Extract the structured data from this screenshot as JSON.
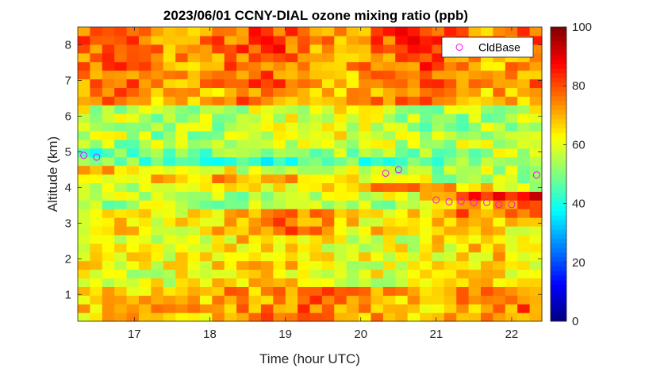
{
  "chart_data": {
    "type": "heatmap",
    "title": "2023/06/01 CCNY-DIAL ozone mixing ratio (ppb)",
    "xlabel": "Time (hour UTC)",
    "ylabel": "Altitude (km)",
    "xlim": [
      16.25,
      22.4
    ],
    "ylim": [
      0.25,
      8.5
    ],
    "x_ticks": [
      17,
      18,
      19,
      20,
      21,
      22
    ],
    "y_ticks": [
      1,
      2,
      3,
      4,
      5,
      6,
      7,
      8
    ],
    "colorbar": {
      "min": 0,
      "max": 100,
      "ticks": [
        0,
        20,
        40,
        60,
        80,
        100
      ],
      "colormap": "jet"
    },
    "legend": {
      "label": "CldBase",
      "marker": "circle",
      "color": "#ff00ff",
      "location": "top-right"
    },
    "cloud_base": {
      "name": "CldBase",
      "x": [
        16.33,
        16.5,
        20.33,
        20.5,
        21.0,
        21.17,
        21.33,
        21.5,
        21.67,
        21.83,
        22.0,
        22.33
      ],
      "y": [
        4.9,
        4.85,
        4.4,
        4.5,
        3.65,
        3.6,
        3.62,
        3.58,
        3.58,
        3.52,
        3.52,
        4.35
      ]
    },
    "field_description": {
      "layers_altitude_km": [
        {
          "range": [
            0.25,
            1.3
          ],
          "typical_ppb": 72
        },
        {
          "range": [
            1.3,
            2.6
          ],
          "typical_ppb": 64
        },
        {
          "range": [
            2.6,
            3.4
          ],
          "typical_ppb": 70
        },
        {
          "range": [
            3.4,
            4.5
          ],
          "typical_ppb": 55
        },
        {
          "range": [
            4.5,
            5.3
          ],
          "typical_ppb": 45
        },
        {
          "range": [
            5.3,
            6.3
          ],
          "typical_ppb": 58
        },
        {
          "range": [
            6.3,
            8.5
          ],
          "typical_ppb": 78
        }
      ]
    }
  }
}
